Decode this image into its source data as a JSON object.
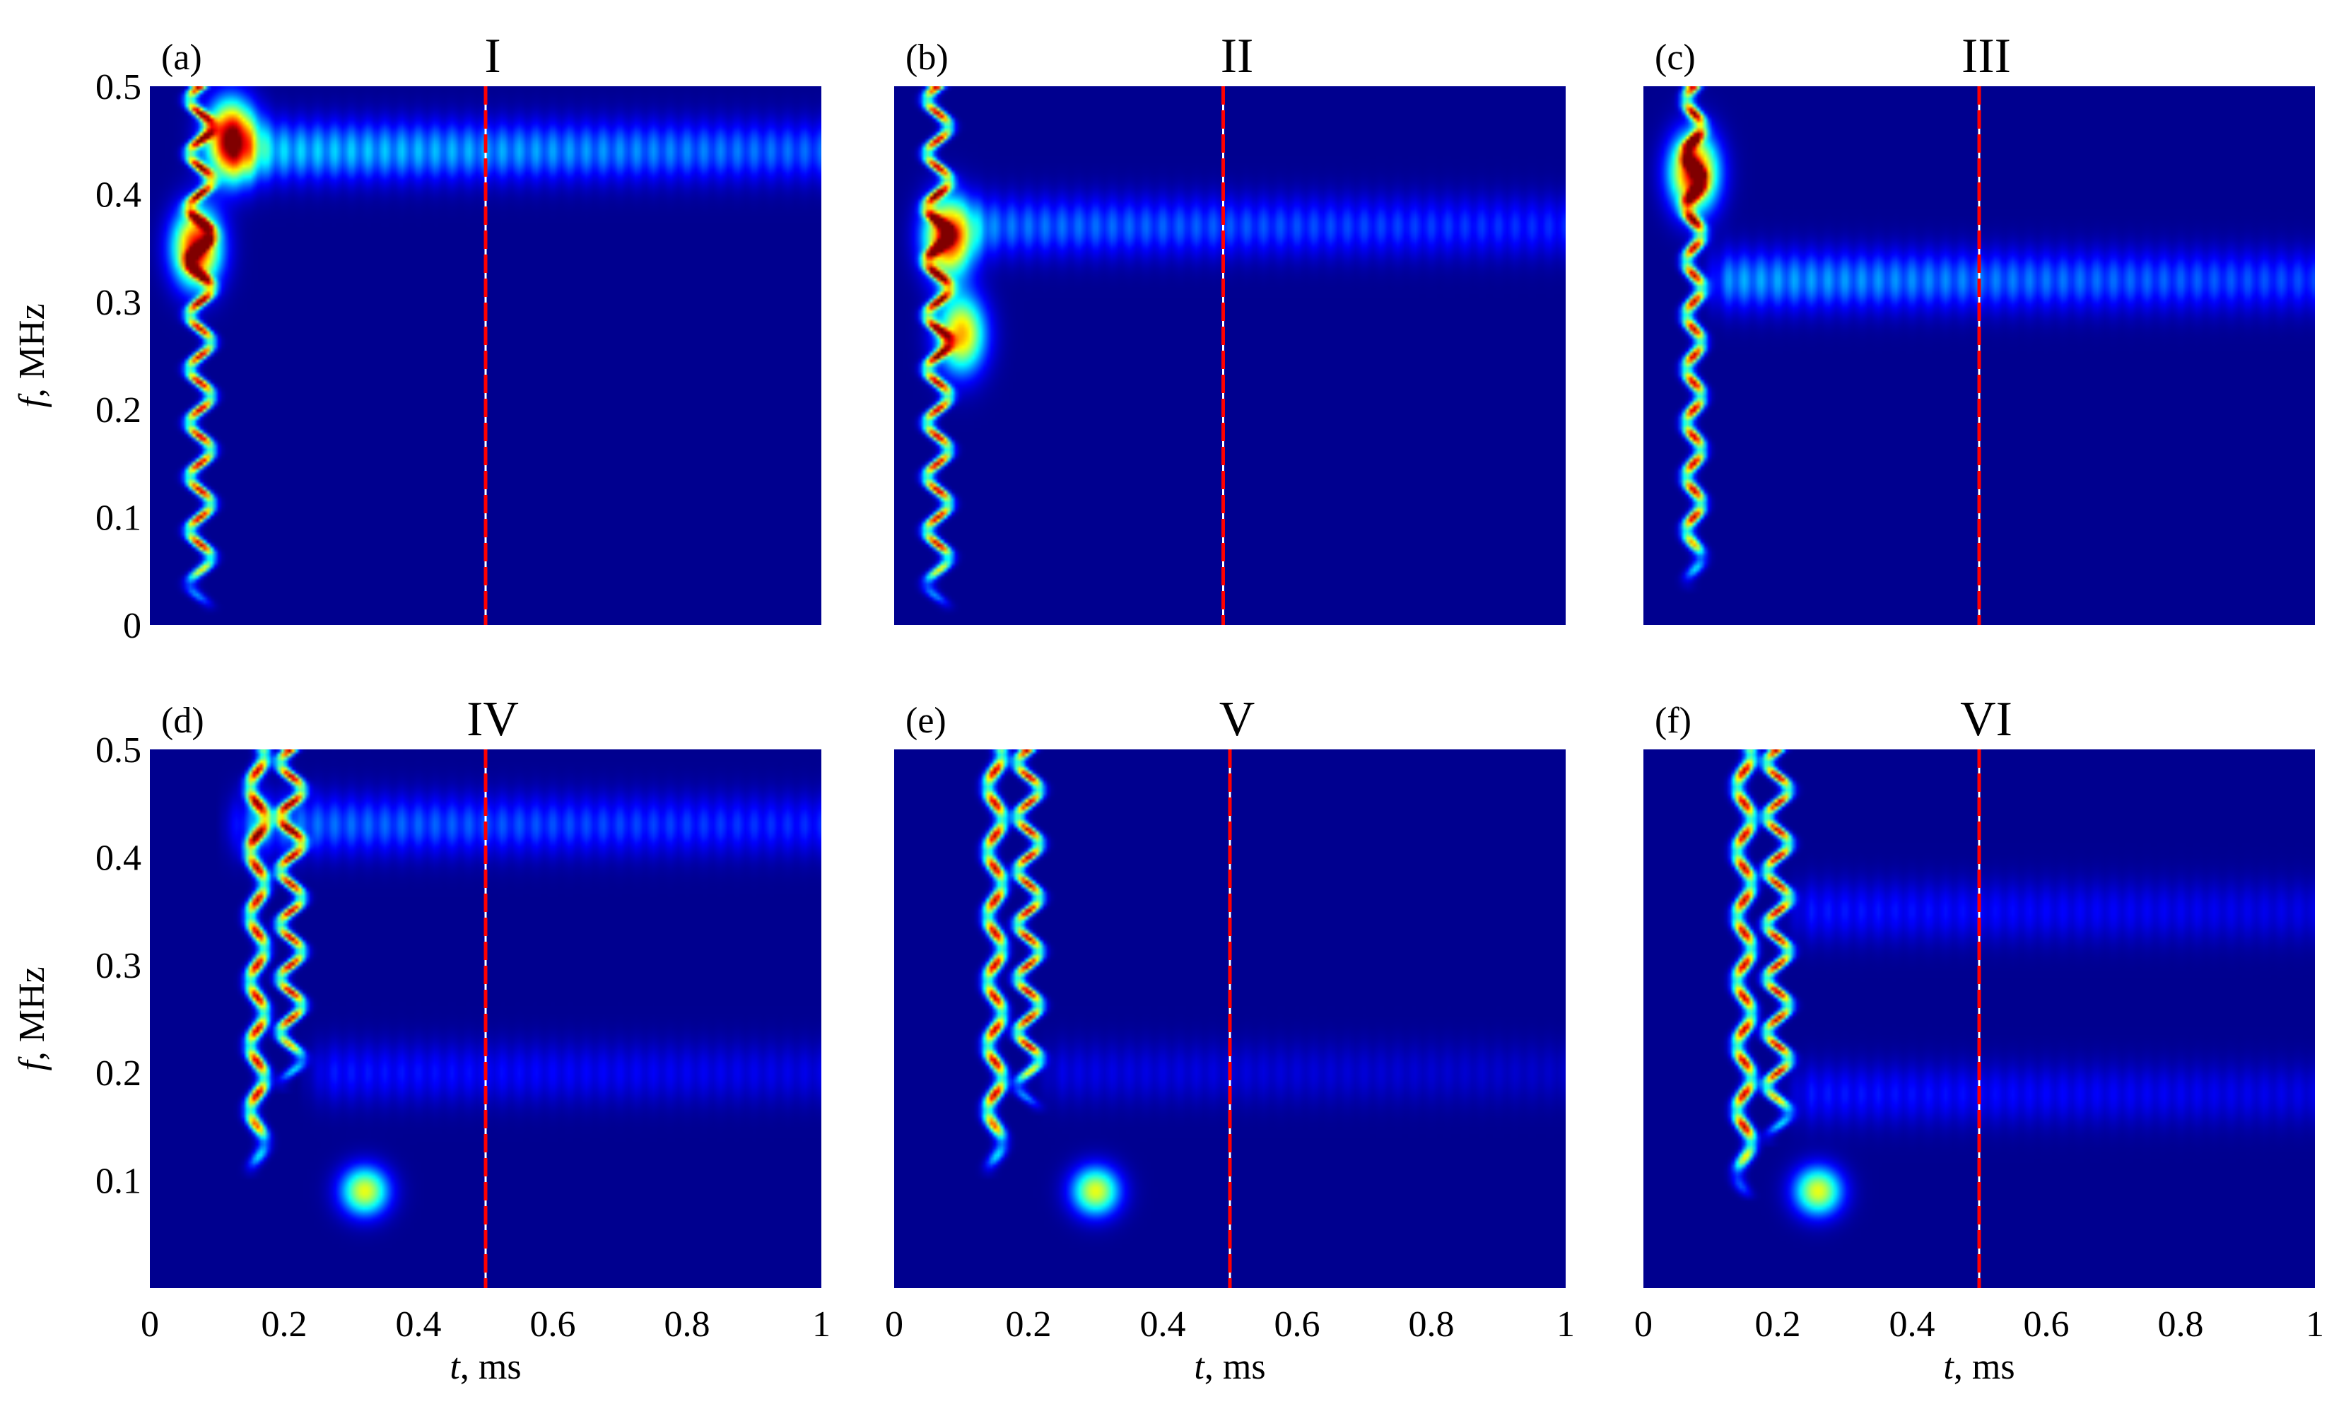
{
  "chart_data": [
    {
      "type": "heatmap",
      "panel_label": "(a)",
      "title": "I",
      "xlim": [
        0,
        1
      ],
      "ylim": [
        0,
        0.5
      ],
      "xlabel_italic": "",
      "xlabel_rest": "",
      "ylabel_italic": "f",
      "ylabel_rest": ", MHz",
      "x_ticks": [],
      "y_ticks": [
        "0",
        "0.1",
        "0.2",
        "0.3",
        "0.4",
        "0.5"
      ],
      "marker_t": 0.5,
      "ridges": [
        {
          "t0": 0.075,
          "amp": 0.015,
          "freq": 0.05,
          "f_from": 0.03,
          "f_to": 0.5
        }
      ],
      "hotspots": [
        {
          "t": 0.12,
          "f": 0.45,
          "intensity": 1.0
        },
        {
          "t": 0.07,
          "f": 0.35,
          "intensity": 0.9
        }
      ],
      "bands": [
        {
          "f": 0.44,
          "t_from": 0.1,
          "t_to": 1.0,
          "intensity": 0.35
        }
      ],
      "blobs": []
    },
    {
      "type": "heatmap",
      "panel_label": "(b)",
      "title": "II",
      "xlim": [
        0,
        1
      ],
      "ylim": [
        0,
        0.5
      ],
      "xlabel_italic": "",
      "xlabel_rest": "",
      "ylabel_italic": "",
      "ylabel_rest": "",
      "x_ticks": [],
      "y_ticks": [],
      "marker_t": 0.49,
      "ridges": [
        {
          "t0": 0.065,
          "amp": 0.015,
          "freq": 0.05,
          "f_from": 0.03,
          "f_to": 0.5
        }
      ],
      "hotspots": [
        {
          "t": 0.08,
          "f": 0.36,
          "intensity": 0.9
        },
        {
          "t": 0.1,
          "f": 0.27,
          "intensity": 0.7
        }
      ],
      "bands": [
        {
          "f": 0.37,
          "t_from": 0.08,
          "t_to": 1.0,
          "intensity": 0.25
        }
      ],
      "blobs": []
    },
    {
      "type": "heatmap",
      "panel_label": "(c)",
      "title": "III",
      "xlim": [
        0,
        1
      ],
      "ylim": [
        0,
        0.5
      ],
      "xlabel_italic": "",
      "xlabel_rest": "",
      "ylabel_italic": "",
      "ylabel_rest": "",
      "x_ticks": [],
      "y_ticks": [],
      "marker_t": 0.5,
      "ridges": [
        {
          "t0": 0.075,
          "amp": 0.01,
          "freq": 0.05,
          "f_from": 0.05,
          "f_to": 0.5
        }
      ],
      "hotspots": [
        {
          "t": 0.075,
          "f": 0.42,
          "intensity": 0.9
        }
      ],
      "bands": [
        {
          "f": 0.32,
          "t_from": 0.08,
          "t_to": 1.0,
          "intensity": 0.3
        }
      ],
      "blobs": []
    },
    {
      "type": "heatmap",
      "panel_label": "(d)",
      "title": "IV",
      "xlim": [
        0,
        1
      ],
      "ylim": [
        0,
        0.5
      ],
      "xlabel_italic": "t",
      "xlabel_rest": ", ms",
      "ylabel_italic": "f",
      "ylabel_rest": ", MHz",
      "x_ticks": [
        "0",
        "0.2",
        "0.4",
        "0.6",
        "0.8",
        "1"
      ],
      "y_ticks": [
        "0.1",
        "0.2",
        "0.3",
        "0.4",
        "0.5"
      ],
      "marker_t": 0.5,
      "ridges": [
        {
          "t0": 0.16,
          "amp": 0.01,
          "freq": 0.06,
          "f_from": 0.12,
          "f_to": 0.5
        },
        {
          "t0": 0.21,
          "amp": 0.015,
          "freq": 0.05,
          "f_from": 0.2,
          "f_to": 0.5
        }
      ],
      "hotspots": [],
      "bands": [
        {
          "f": 0.43,
          "t_from": 0.1,
          "t_to": 1.0,
          "intensity": 0.25
        },
        {
          "f": 0.2,
          "t_from": 0.22,
          "t_to": 1.0,
          "intensity": 0.15
        }
      ],
      "blobs": [
        {
          "t": 0.32,
          "f": 0.09,
          "intensity": 0.6
        }
      ]
    },
    {
      "type": "heatmap",
      "panel_label": "(e)",
      "title": "V",
      "xlim": [
        0,
        1
      ],
      "ylim": [
        0,
        0.5
      ],
      "xlabel_italic": "t",
      "xlabel_rest": ", ms",
      "ylabel_italic": "",
      "ylabel_rest": "",
      "x_ticks": [
        "0",
        "0.2",
        "0.4",
        "0.6",
        "0.8",
        "1"
      ],
      "y_ticks": [],
      "marker_t": 0.5,
      "ridges": [
        {
          "t0": 0.15,
          "amp": 0.01,
          "freq": 0.06,
          "f_from": 0.12,
          "f_to": 0.5
        },
        {
          "t0": 0.2,
          "amp": 0.015,
          "freq": 0.05,
          "f_from": 0.18,
          "f_to": 0.5
        }
      ],
      "hotspots": [],
      "bands": [
        {
          "f": 0.2,
          "t_from": 0.2,
          "t_to": 1.0,
          "intensity": 0.1
        }
      ],
      "blobs": [
        {
          "t": 0.3,
          "f": 0.09,
          "intensity": 0.6
        }
      ]
    },
    {
      "type": "heatmap",
      "panel_label": "(f)",
      "title": "VI",
      "xlim": [
        0,
        1
      ],
      "ylim": [
        0,
        0.5
      ],
      "xlabel_italic": "t",
      "xlabel_rest": ", ms",
      "ylabel_italic": "",
      "ylabel_rest": "",
      "x_ticks": [
        "0",
        "0.2",
        "0.4",
        "0.6",
        "0.8",
        "1"
      ],
      "y_ticks": [],
      "marker_t": 0.5,
      "ridges": [
        {
          "t0": 0.15,
          "amp": 0.01,
          "freq": 0.06,
          "f_from": 0.1,
          "f_to": 0.5
        },
        {
          "t0": 0.2,
          "amp": 0.015,
          "freq": 0.05,
          "f_from": 0.15,
          "f_to": 0.5
        }
      ],
      "hotspots": [],
      "bands": [
        {
          "f": 0.35,
          "t_from": 0.2,
          "t_to": 1.0,
          "intensity": 0.15
        },
        {
          "f": 0.18,
          "t_from": 0.2,
          "t_to": 1.0,
          "intensity": 0.15
        }
      ],
      "blobs": [
        {
          "t": 0.26,
          "f": 0.09,
          "intensity": 0.6
        }
      ]
    }
  ],
  "colors": {
    "background": "#00008f",
    "marker_red": "#ff0000",
    "marker_white": "#ffffff"
  }
}
